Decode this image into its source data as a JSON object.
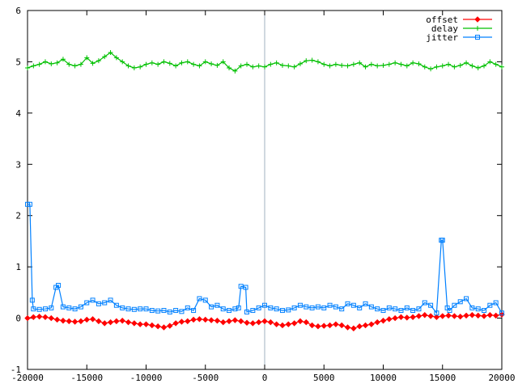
{
  "chart_data": {
    "type": "line",
    "title": "",
    "xlabel": "",
    "ylabel": "",
    "xlim": [
      -20000,
      20000
    ],
    "ylim": [
      -1,
      6
    ],
    "xticks": [
      -20000,
      -15000,
      -10000,
      -5000,
      0,
      5000,
      10000,
      15000,
      20000
    ],
    "xtick_labels": [
      "-20000",
      "-15000",
      "-10000",
      "-5000",
      "0",
      "5000",
      "10000",
      "15000",
      "20000"
    ],
    "yticks": [
      -1,
      0,
      1,
      2,
      3,
      4,
      5,
      6
    ],
    "ytick_labels": [
      "-1",
      "0",
      "1",
      "2",
      "3",
      "4",
      "5",
      "6"
    ],
    "grid": false,
    "zero_line_x": 0,
    "legend": {
      "placement": "top-right"
    },
    "series": [
      {
        "name": "offset",
        "color": "#ff0000",
        "marker": "diamond",
        "x": [
          -20000,
          -19500,
          -19000,
          -18500,
          -18000,
          -17500,
          -17000,
          -16500,
          -16000,
          -15500,
          -15000,
          -14500,
          -14000,
          -13500,
          -13000,
          -12500,
          -12000,
          -11500,
          -11000,
          -10500,
          -10000,
          -9500,
          -9000,
          -8500,
          -8000,
          -7500,
          -7000,
          -6500,
          -6000,
          -5500,
          -5000,
          -4500,
          -4000,
          -3500,
          -3000,
          -2500,
          -2000,
          -1500,
          -1000,
          -500,
          0,
          500,
          1000,
          1500,
          2000,
          2500,
          3000,
          3500,
          4000,
          4500,
          5000,
          5500,
          6000,
          6500,
          7000,
          7500,
          8000,
          8500,
          9000,
          9500,
          10000,
          10500,
          11000,
          11500,
          12000,
          12500,
          13000,
          13500,
          14000,
          14500,
          15000,
          15500,
          16000,
          16500,
          17000,
          17500,
          18000,
          18500,
          19000,
          19500,
          20000
        ],
        "values": [
          0.0,
          0.02,
          0.03,
          0.02,
          0.0,
          -0.03,
          -0.05,
          -0.06,
          -0.07,
          -0.06,
          -0.03,
          -0.02,
          -0.06,
          -0.1,
          -0.08,
          -0.06,
          -0.05,
          -0.08,
          -0.1,
          -0.12,
          -0.12,
          -0.14,
          -0.16,
          -0.18,
          -0.15,
          -0.1,
          -0.07,
          -0.06,
          -0.03,
          -0.02,
          -0.03,
          -0.04,
          -0.05,
          -0.08,
          -0.06,
          -0.04,
          -0.06,
          -0.09,
          -0.1,
          -0.08,
          -0.06,
          -0.08,
          -0.12,
          -0.14,
          -0.12,
          -0.1,
          -0.06,
          -0.08,
          -0.14,
          -0.16,
          -0.15,
          -0.14,
          -0.12,
          -0.14,
          -0.18,
          -0.2,
          -0.16,
          -0.14,
          -0.12,
          -0.08,
          -0.05,
          -0.02,
          0.0,
          0.02,
          0.01,
          0.02,
          0.04,
          0.06,
          0.04,
          0.02,
          0.04,
          0.05,
          0.04,
          0.03,
          0.05,
          0.06,
          0.05,
          0.04,
          0.06,
          0.05,
          0.07
        ]
      },
      {
        "name": "delay",
        "color": "#00c000",
        "marker": "plus",
        "x": [
          -20000,
          -19500,
          -19000,
          -18500,
          -18000,
          -17500,
          -17000,
          -16500,
          -16000,
          -15500,
          -15000,
          -14500,
          -14000,
          -13500,
          -13000,
          -12500,
          -12000,
          -11500,
          -11000,
          -10500,
          -10000,
          -9500,
          -9000,
          -8500,
          -8000,
          -7500,
          -7000,
          -6500,
          -6000,
          -5500,
          -5000,
          -4500,
          -4000,
          -3500,
          -3000,
          -2500,
          -2000,
          -1500,
          -1000,
          -500,
          0,
          500,
          1000,
          1500,
          2000,
          2500,
          3000,
          3500,
          4000,
          4500,
          5000,
          5500,
          6000,
          6500,
          7000,
          7500,
          8000,
          8500,
          9000,
          9500,
          10000,
          10500,
          11000,
          11500,
          12000,
          12500,
          13000,
          13500,
          14000,
          14500,
          15000,
          15500,
          16000,
          16500,
          17000,
          17500,
          18000,
          18500,
          19000,
          19500,
          20000
        ],
        "values": [
          4.88,
          4.92,
          4.95,
          5.0,
          4.96,
          4.98,
          5.05,
          4.95,
          4.92,
          4.95,
          5.08,
          4.97,
          5.02,
          5.1,
          5.18,
          5.08,
          5.0,
          4.92,
          4.88,
          4.9,
          4.95,
          4.98,
          4.95,
          5.0,
          4.97,
          4.92,
          4.98,
          5.0,
          4.95,
          4.92,
          5.0,
          4.96,
          4.93,
          5.0,
          4.88,
          4.82,
          4.92,
          4.95,
          4.9,
          4.92,
          4.9,
          4.95,
          4.98,
          4.93,
          4.92,
          4.9,
          4.96,
          5.02,
          5.03,
          5.0,
          4.95,
          4.92,
          4.95,
          4.93,
          4.92,
          4.95,
          4.98,
          4.9,
          4.95,
          4.92,
          4.93,
          4.95,
          4.98,
          4.95,
          4.92,
          4.98,
          4.96,
          4.9,
          4.86,
          4.9,
          4.92,
          4.95,
          4.9,
          4.93,
          4.98,
          4.92,
          4.88,
          4.92,
          5.0,
          4.95,
          4.9
        ]
      },
      {
        "name": "jitter",
        "color": "#0080ff",
        "marker": "square",
        "x": [
          -20000,
          -19800,
          -19600,
          -19500,
          -19000,
          -18500,
          -18000,
          -17600,
          -17400,
          -17000,
          -16500,
          -16000,
          -15500,
          -15000,
          -14500,
          -14000,
          -13500,
          -13000,
          -12500,
          -12000,
          -11500,
          -11000,
          -10500,
          -10000,
          -9500,
          -9000,
          -8500,
          -8000,
          -7500,
          -7000,
          -6500,
          -6000,
          -5500,
          -5000,
          -4500,
          -4000,
          -3500,
          -3000,
          -2500,
          -2200,
          -2000,
          -1600,
          -1500,
          -1000,
          -500,
          0,
          500,
          1000,
          1500,
          2000,
          2500,
          3000,
          3500,
          4000,
          4500,
          5000,
          5500,
          6000,
          6500,
          7000,
          7500,
          8000,
          8500,
          9000,
          9500,
          10000,
          10500,
          11000,
          11500,
          12000,
          12500,
          13000,
          13500,
          14000,
          14500,
          14900,
          15000,
          15400,
          15600,
          16000,
          16500,
          17000,
          17500,
          18000,
          18500,
          19000,
          19500,
          20000
        ],
        "values": [
          2.22,
          2.22,
          0.35,
          0.18,
          0.17,
          0.18,
          0.2,
          0.6,
          0.64,
          0.22,
          0.2,
          0.18,
          0.22,
          0.3,
          0.35,
          0.28,
          0.3,
          0.35,
          0.25,
          0.2,
          0.18,
          0.17,
          0.18,
          0.18,
          0.15,
          0.14,
          0.15,
          0.12,
          0.15,
          0.13,
          0.2,
          0.15,
          0.38,
          0.35,
          0.22,
          0.25,
          0.18,
          0.15,
          0.18,
          0.2,
          0.62,
          0.6,
          0.12,
          0.15,
          0.2,
          0.25,
          0.2,
          0.18,
          0.15,
          0.16,
          0.2,
          0.25,
          0.22,
          0.2,
          0.22,
          0.2,
          0.25,
          0.22,
          0.18,
          0.28,
          0.25,
          0.2,
          0.28,
          0.22,
          0.18,
          0.15,
          0.2,
          0.18,
          0.15,
          0.2,
          0.15,
          0.18,
          0.3,
          0.25,
          0.1,
          1.52,
          1.52,
          0.2,
          0.15,
          0.25,
          0.32,
          0.38,
          0.2,
          0.18,
          0.15,
          0.25,
          0.3,
          0.1
        ]
      }
    ]
  }
}
